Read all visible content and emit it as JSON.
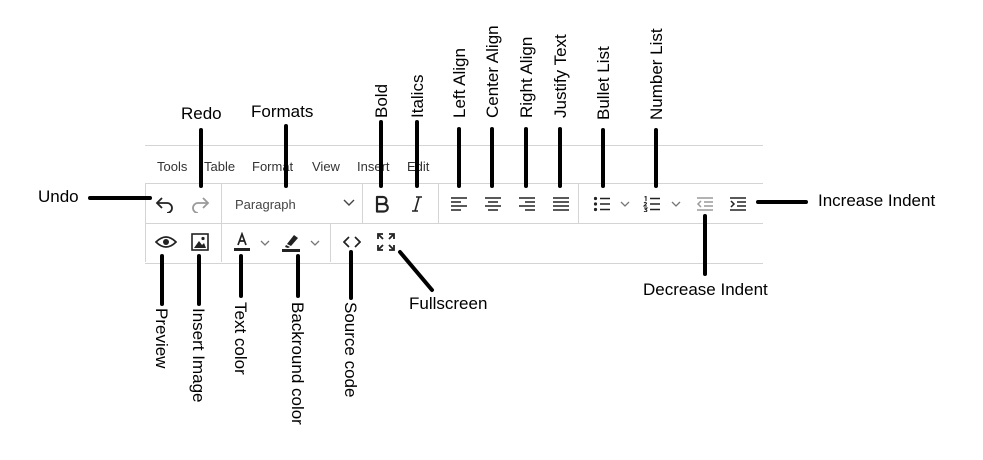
{
  "menubar": {
    "items": [
      "Tools",
      "Table",
      "Format",
      "View",
      "Insert",
      "Edit"
    ]
  },
  "toolbar": {
    "formats_value": "Paragraph",
    "icons": {
      "undo": "undo-icon",
      "redo": "redo-icon",
      "bold": "bold-icon",
      "italic": "italic-icon",
      "align_left": "align-left-icon",
      "align_center": "align-center-icon",
      "align_right": "align-right-icon",
      "justify": "justify-icon",
      "bullet_list": "bullet-list-icon",
      "number_list": "number-list-icon",
      "decrease_indent": "outdent-icon",
      "increase_indent": "indent-icon",
      "preview": "eye-icon",
      "insert_image": "image-icon",
      "text_color": "text-color-icon",
      "background_color": "highlighter-icon",
      "source_code": "code-icon",
      "fullscreen": "fullscreen-icon"
    }
  },
  "annotations": {
    "undo": "Undo",
    "redo": "Redo",
    "formats": "Formats",
    "bold": "Bold",
    "italics": "Italics",
    "left_align": "Left Align",
    "center_align": "Center Align",
    "right_align": "Right Align",
    "justify_text": "Justify Text",
    "bullet_list": "Bullet List",
    "number_list": "Number List",
    "increase_indent": "Increase Indent",
    "decrease_indent": "Decrease Indent",
    "preview": "Preview",
    "insert_image": "Insert Image",
    "text_color": "Text color",
    "background_color": "Backround color",
    "source_code": "Source code",
    "fullscreen": "Fullscreen"
  },
  "colors": {
    "border": "#d4d4d4",
    "icon": "#222222",
    "icon_disabled": "#9a9a9a",
    "pointer": "#000000"
  }
}
